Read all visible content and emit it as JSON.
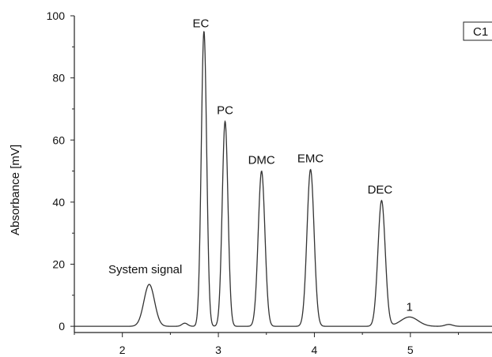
{
  "chart_data": {
    "type": "line",
    "title": "",
    "panel_label": "C1",
    "xlabel": "",
    "ylabel": "Absorbance [mV]",
    "xlim": [
      1.5,
      5.85
    ],
    "ylim": [
      -2,
      100
    ],
    "xticks": [
      2,
      3,
      4,
      5
    ],
    "yticks": [
      0,
      20,
      40,
      60,
      80,
      100
    ],
    "grid": false,
    "baseline": 0,
    "peaks": [
      {
        "label": "System signal",
        "x": 2.28,
        "y": 13.5,
        "width": 0.055
      },
      {
        "label": "EC",
        "x": 2.85,
        "y": 95,
        "width": 0.028
      },
      {
        "label": "PC",
        "x": 3.07,
        "y": 66,
        "width": 0.03
      },
      {
        "label": "DMC",
        "x": 3.45,
        "y": 50,
        "width": 0.035
      },
      {
        "label": "EMC",
        "x": 3.96,
        "y": 50.5,
        "width": 0.037
      },
      {
        "label": "DEC",
        "x": 4.7,
        "y": 40.5,
        "width": 0.038
      },
      {
        "label": "1",
        "x": 4.99,
        "y": 3,
        "width": 0.09
      }
    ],
    "minor_bumps": [
      {
        "x": 2.65,
        "y": 1.0,
        "width": 0.03
      },
      {
        "x": 5.4,
        "y": 0.6,
        "width": 0.04
      }
    ]
  }
}
